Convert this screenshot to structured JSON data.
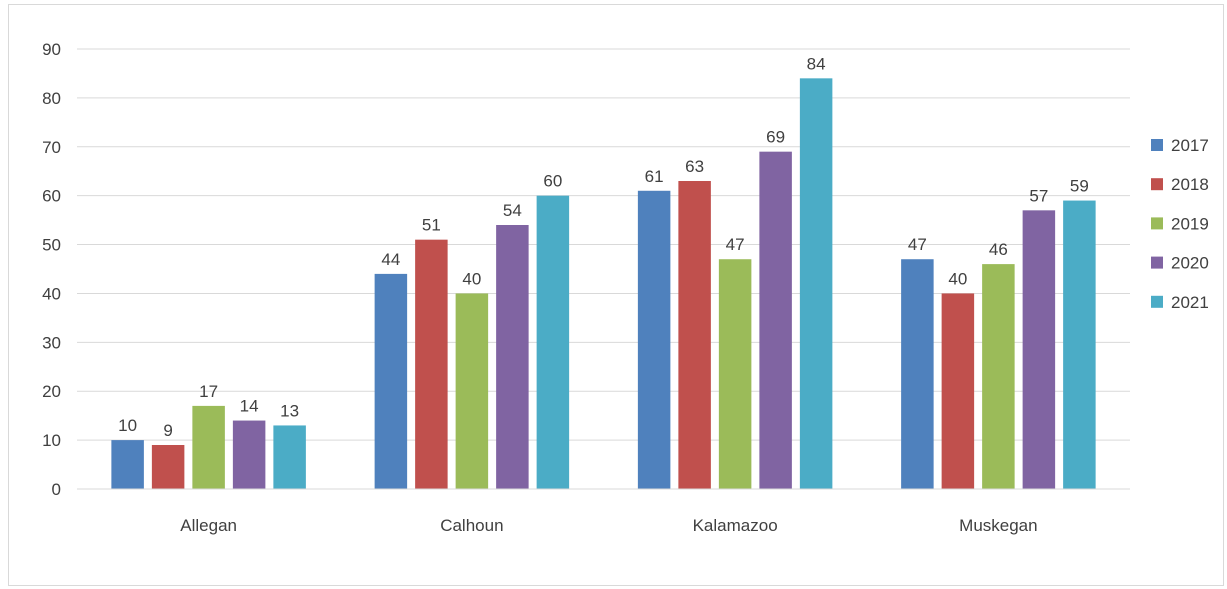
{
  "chart_data": {
    "type": "bar",
    "title": "",
    "xlabel": "",
    "ylabel": "",
    "categories": [
      "Allegan",
      "Calhoun",
      "Kalamazoo",
      "Muskegan"
    ],
    "series": [
      {
        "name": "2017",
        "color": "#4F81BD",
        "values": [
          10,
          44,
          61,
          47
        ]
      },
      {
        "name": "2018",
        "color": "#C0504D",
        "values": [
          9,
          51,
          63,
          40
        ]
      },
      {
        "name": "2019",
        "color": "#9BBB59",
        "values": [
          17,
          40,
          47,
          46
        ]
      },
      {
        "name": "2020",
        "color": "#8064A2",
        "values": [
          14,
          54,
          69,
          57
        ]
      },
      {
        "name": "2021",
        "color": "#4BACC6",
        "values": [
          13,
          60,
          84,
          59
        ]
      }
    ],
    "ylim": [
      0,
      90
    ],
    "yticks": [
      0,
      10,
      20,
      30,
      40,
      50,
      60,
      70,
      80,
      90
    ],
    "grid": true,
    "legend_position": "right",
    "data_labels": true
  }
}
